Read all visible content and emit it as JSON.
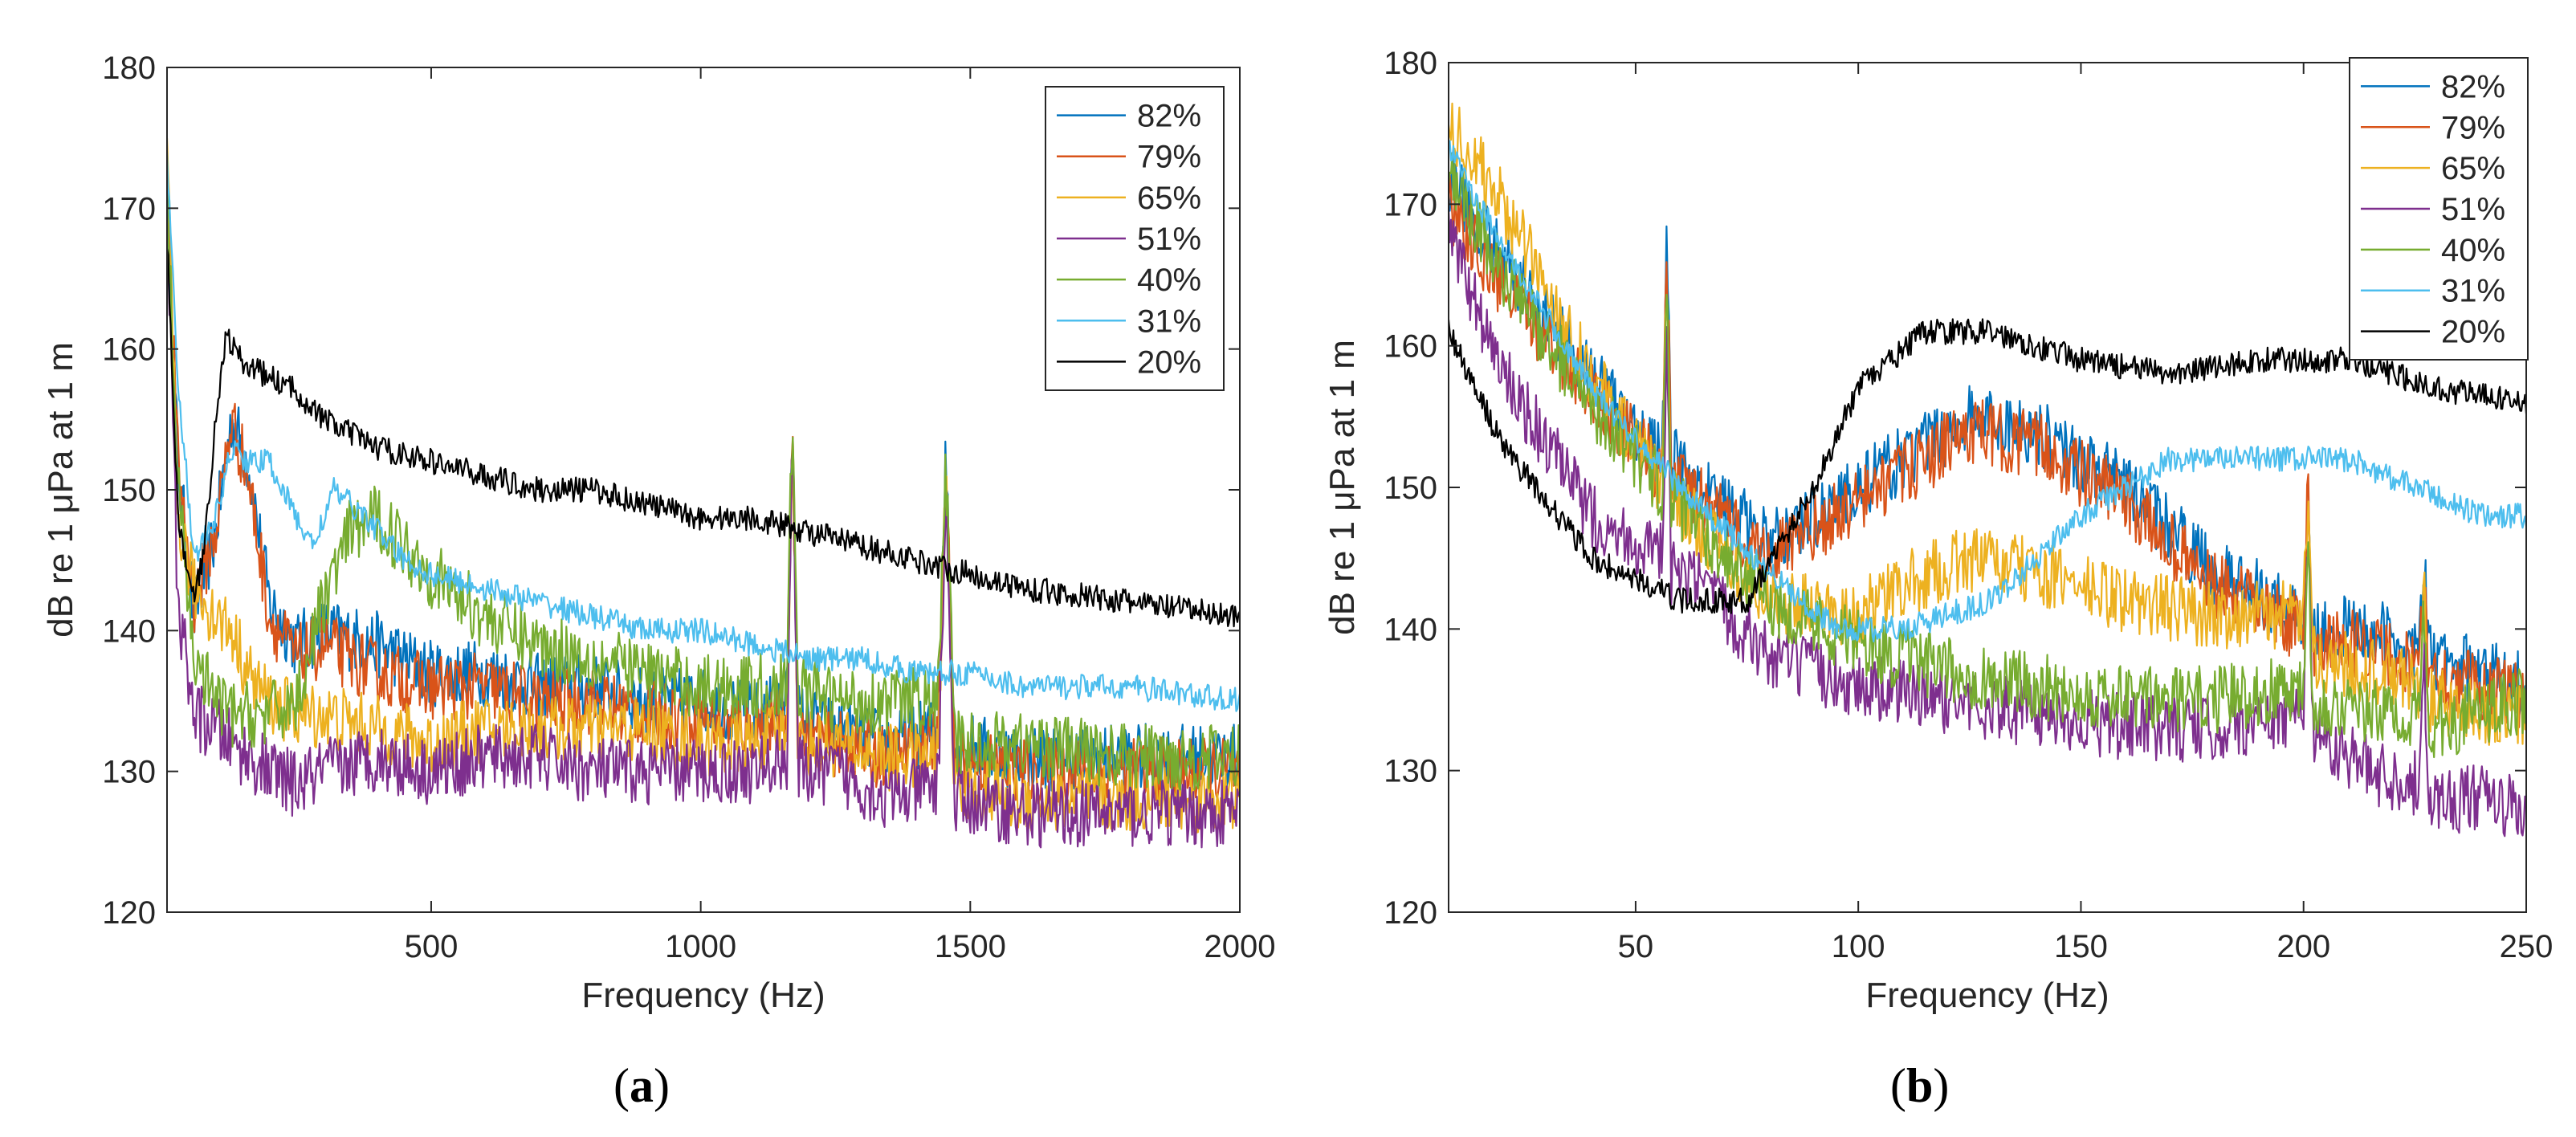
{
  "chart_data": [
    {
      "id": "a",
      "type": "line",
      "panel_label": "a",
      "title": "",
      "xlabel": "Frequency (Hz)",
      "ylabel": "dB re 1  μPa at 1 m",
      "xlim": [
        10,
        2000
      ],
      "ylim": [
        120,
        180
      ],
      "xticks": [
        500,
        1000,
        1500,
        2000
      ],
      "yticks": [
        120,
        130,
        140,
        150,
        160,
        170,
        180
      ],
      "grid": false,
      "legend_position": "top-right",
      "series": [
        {
          "name": "82%",
          "color": "#0072BD",
          "x": [
            10,
            30,
            60,
            100,
            130,
            160,
            200,
            250,
            300,
            400,
            500,
            600,
            700,
            800,
            900,
            1000,
            1100,
            1160,
            1170,
            1180,
            1250,
            1350,
            1440,
            1455,
            1470,
            1600,
            1800,
            2000
          ],
          "y": [
            172,
            152,
            141,
            147,
            155,
            152,
            142,
            139,
            140,
            139,
            137,
            137,
            136,
            136,
            135,
            135,
            134,
            135,
            156,
            134,
            133,
            132,
            133,
            153,
            132,
            131,
            131,
            131
          ]
        },
        {
          "name": "79%",
          "color": "#D95319",
          "x": [
            10,
            30,
            60,
            100,
            130,
            160,
            200,
            250,
            300,
            400,
            500,
            600,
            700,
            800,
            900,
            1000,
            1100,
            1160,
            1170,
            1180,
            1250,
            1350,
            1440,
            1455,
            1470,
            1600,
            1800,
            2000
          ],
          "y": [
            172,
            152,
            142,
            147,
            155,
            151,
            141,
            138,
            139,
            137,
            136,
            136,
            135,
            135,
            134,
            134,
            133,
            134,
            156,
            133,
            132,
            131,
            132,
            152,
            131,
            130,
            130,
            130
          ]
        },
        {
          "name": "65%",
          "color": "#EDB120",
          "x": [
            10,
            30,
            60,
            100,
            130,
            160,
            200,
            250,
            300,
            400,
            500,
            600,
            700,
            800,
            900,
            1000,
            1100,
            1160,
            1170,
            1180,
            1250,
            1350,
            1440,
            1455,
            1470,
            1600,
            1800,
            2000
          ],
          "y": [
            174,
            148,
            143,
            141,
            140,
            137,
            135,
            134,
            134,
            133,
            132,
            133,
            133,
            133,
            133,
            132,
            132,
            133,
            155,
            132,
            132,
            131,
            131,
            151,
            129,
            128,
            128,
            128
          ]
        },
        {
          "name": "51%",
          "color": "#7E2F8E",
          "x": [
            10,
            30,
            60,
            100,
            130,
            160,
            200,
            250,
            300,
            400,
            500,
            600,
            700,
            800,
            900,
            1000,
            1100,
            1160,
            1170,
            1180,
            1250,
            1350,
            1440,
            1455,
            1470,
            1600,
            1800,
            2000
          ],
          "y": [
            170,
            142,
            134,
            133,
            132,
            131,
            130,
            129,
            130,
            131,
            130,
            131,
            131,
            130,
            130,
            130,
            130,
            131,
            155,
            130,
            130,
            128,
            129,
            150,
            128,
            127,
            127,
            127
          ]
        },
        {
          "name": "40%",
          "color": "#77AC30",
          "x": [
            10,
            30,
            60,
            100,
            130,
            160,
            200,
            250,
            300,
            350,
            400,
            500,
            600,
            700,
            800,
            900,
            1000,
            1100,
            1160,
            1170,
            1180,
            1250,
            1350,
            1440,
            1455,
            1470,
            1600,
            1800,
            2000
          ],
          "y": [
            171,
            150,
            138,
            135,
            134,
            134,
            134,
            135,
            142,
            147,
            148,
            144,
            141,
            139,
            138,
            137,
            136,
            136,
            136,
            156,
            136,
            135,
            135,
            135,
            152,
            132,
            132,
            131,
            131
          ]
        },
        {
          "name": "31%",
          "color": "#4DBEEE",
          "x": [
            10,
            30,
            60,
            100,
            130,
            160,
            200,
            250,
            280,
            320,
            380,
            450,
            500,
            600,
            700,
            800,
            900,
            1000,
            1100,
            1200,
            1300,
            1400,
            1500,
            1600,
            1800,
            2000
          ],
          "y": [
            174,
            158,
            145,
            148,
            153,
            152,
            152,
            148,
            146,
            150,
            148,
            145,
            144,
            143,
            142,
            141,
            140,
            140,
            139,
            138,
            138,
            137,
            137,
            136,
            136,
            135
          ]
        },
        {
          "name": "20%",
          "color": "#000000",
          "x": [
            10,
            30,
            60,
            80,
            100,
            120,
            150,
            200,
            250,
            300,
            350,
            400,
            500,
            600,
            700,
            800,
            900,
            1000,
            1100,
            1200,
            1300,
            1400,
            1500,
            1600,
            1800,
            2000
          ],
          "y": [
            168,
            148,
            142,
            146,
            155,
            161,
            159,
            158,
            157,
            155,
            154,
            153,
            152,
            151,
            150,
            150,
            149,
            148,
            148,
            147,
            146,
            145,
            144,
            143,
            142,
            141
          ]
        }
      ]
    },
    {
      "id": "b",
      "type": "line",
      "panel_label": "b",
      "title": "",
      "xlabel": "Frequency (Hz)",
      "ylabel": "dB re 1  μPa at 1 m",
      "xlim": [
        8,
        250
      ],
      "ylim": [
        120,
        180
      ],
      "xticks": [
        50,
        100,
        150,
        200,
        250
      ],
      "yticks": [
        120,
        130,
        140,
        150,
        160,
        170,
        180
      ],
      "grid": false,
      "legend_position": "top-right",
      "series": [
        {
          "name": "82%",
          "color": "#0072BD",
          "x": [
            8,
            20,
            40,
            56,
            57,
            58,
            65,
            80,
            100,
            115,
            125,
            140,
            160,
            180,
            200,
            201,
            202,
            215,
            226,
            227,
            228,
            240,
            250
          ],
          "y": [
            172,
            166,
            158,
            152,
            168,
            152,
            150,
            146,
            150,
            153,
            155,
            154,
            150,
            144,
            141,
            150,
            140,
            140,
            138,
            146,
            138,
            137,
            136
          ]
        },
        {
          "name": "79%",
          "color": "#D95319",
          "x": [
            8,
            20,
            40,
            56,
            57,
            58,
            65,
            80,
            100,
            115,
            125,
            140,
            160,
            180,
            200,
            201,
            202,
            215,
            226,
            227,
            228,
            240,
            250
          ],
          "y": [
            170,
            164,
            157,
            151,
            167,
            151,
            149,
            145,
            149,
            152,
            154,
            153,
            149,
            143,
            140,
            150,
            139,
            139,
            137,
            145,
            137,
            136,
            135
          ]
        },
        {
          "name": "65%",
          "color": "#EDB120",
          "x": [
            8,
            20,
            40,
            56,
            57,
            58,
            65,
            80,
            100,
            110,
            125,
            140,
            160,
            180,
            200,
            201,
            202,
            215,
            226,
            227,
            228,
            240,
            250
          ],
          "y": [
            176,
            170,
            158,
            150,
            165,
            149,
            147,
            142,
            141,
            143,
            145,
            144,
            142,
            141,
            141,
            149,
            138,
            137,
            136,
            144,
            135,
            134,
            134
          ]
        },
        {
          "name": "51%",
          "color": "#7E2F8E",
          "x": [
            8,
            20,
            40,
            56,
            57,
            58,
            65,
            80,
            100,
            120,
            140,
            160,
            180,
            200,
            201,
            202,
            215,
            226,
            227,
            228,
            240,
            250
          ],
          "y": [
            168,
            158,
            148,
            145,
            160,
            144,
            143,
            138,
            136,
            135,
            134,
            133,
            133,
            134,
            148,
            133,
            130,
            129,
            140,
            128,
            128,
            127
          ]
        },
        {
          "name": "40%",
          "color": "#77AC30",
          "x": [
            8,
            20,
            40,
            56,
            57,
            58,
            65,
            80,
            100,
            120,
            140,
            160,
            180,
            200,
            201,
            202,
            215,
            226,
            227,
            228,
            240,
            250
          ],
          "y": [
            172,
            165,
            156,
            150,
            164,
            149,
            147,
            142,
            139,
            137,
            136,
            135,
            135,
            136,
            148,
            135,
            134,
            134,
            142,
            133,
            134,
            135
          ]
        },
        {
          "name": "31%",
          "color": "#4DBEEE",
          "x": [
            8,
            20,
            40,
            60,
            80,
            95,
            110,
            130,
            150,
            170,
            190,
            210,
            225,
            240,
            250
          ],
          "y": [
            174,
            167,
            157,
            150,
            144,
            140,
            140,
            142,
            148,
            152,
            152,
            152,
            150,
            148,
            148
          ]
        },
        {
          "name": "20%",
          "color": "#000000",
          "x": [
            8,
            20,
            40,
            60,
            75,
            90,
            100,
            115,
            130,
            150,
            170,
            190,
            210,
            230,
            250
          ],
          "y": [
            161,
            153,
            145,
            142,
            142,
            150,
            157,
            161,
            161,
            159,
            158,
            159,
            159,
            157,
            156
          ]
        }
      ]
    }
  ]
}
